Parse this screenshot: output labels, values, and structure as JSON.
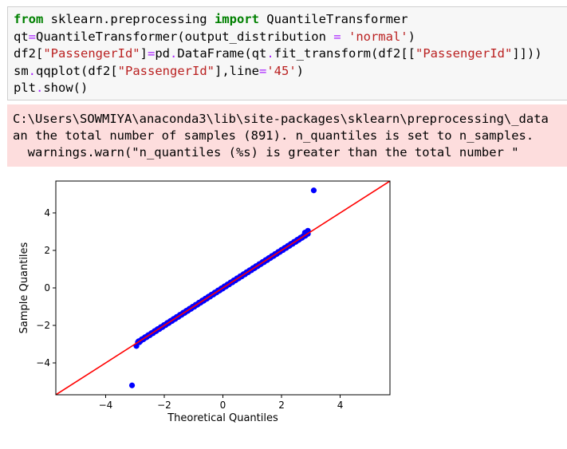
{
  "code_cell": {
    "lines": [
      {
        "segments": [
          {
            "t": "from",
            "c": "kw"
          },
          {
            "t": " sklearn.preprocessing ",
            "c": ""
          },
          {
            "t": "import",
            "c": "kw"
          },
          {
            "t": " QuantileTransformer",
            "c": ""
          }
        ]
      },
      {
        "segments": [
          {
            "t": "qt",
            "c": ""
          },
          {
            "t": "=",
            "c": "op"
          },
          {
            "t": "QuantileTransformer(output_distribution ",
            "c": ""
          },
          {
            "t": "=",
            "c": "op"
          },
          {
            "t": " ",
            "c": ""
          },
          {
            "t": "'normal'",
            "c": "str"
          },
          {
            "t": ")",
            "c": ""
          }
        ]
      },
      {
        "segments": [
          {
            "t": "df2[",
            "c": ""
          },
          {
            "t": "\"PassengerId\"",
            "c": "str"
          },
          {
            "t": "]",
            "c": ""
          },
          {
            "t": "=",
            "c": "op"
          },
          {
            "t": "pd",
            "c": ""
          },
          {
            "t": ".",
            "c": "op"
          },
          {
            "t": "DataFrame(qt",
            "c": ""
          },
          {
            "t": ".",
            "c": "op"
          },
          {
            "t": "fit_transform(df2[[",
            "c": ""
          },
          {
            "t": "\"PassengerId\"",
            "c": "str"
          },
          {
            "t": "]]))",
            "c": ""
          }
        ]
      },
      {
        "segments": [
          {
            "t": "sm",
            "c": ""
          },
          {
            "t": ".",
            "c": "op"
          },
          {
            "t": "qqplot(df2[",
            "c": ""
          },
          {
            "t": "\"PassengerId\"",
            "c": "str"
          },
          {
            "t": "],line",
            "c": ""
          },
          {
            "t": "=",
            "c": "op"
          },
          {
            "t": "'45'",
            "c": "str"
          },
          {
            "t": ")",
            "c": ""
          }
        ]
      },
      {
        "segments": [
          {
            "t": "plt",
            "c": ""
          },
          {
            "t": ".",
            "c": "op"
          },
          {
            "t": "show()",
            "c": ""
          }
        ]
      }
    ]
  },
  "stderr": {
    "lines": [
      "C:\\Users\\SOWMIYA\\anaconda3\\lib\\site-packages\\sklearn\\preprocessing\\_data",
      "an the total number of samples (891). n_quantiles is set to n_samples.",
      "  warnings.warn(\"n_quantiles (%s) is greater than the total number \""
    ]
  },
  "colors": {
    "code_bg": "#f7f7f7",
    "stderr_bg": "#fddddd",
    "keyword": "#008000",
    "operator": "#aa22ff",
    "string": "#ba2121",
    "points": "#0000ff",
    "reference_line": "#ff0000"
  },
  "chart_data": {
    "type": "scatter",
    "title": "",
    "xlabel": "Theoretical Quantiles",
    "ylabel": "Sample Quantiles",
    "xlim": [
      -5.7,
      5.7
    ],
    "ylim": [
      -5.7,
      5.7
    ],
    "xticks": [
      -4,
      -2,
      0,
      2,
      4
    ],
    "yticks": [
      -4,
      -2,
      0,
      2,
      4
    ],
    "xtick_labels": [
      "−4",
      "−2",
      "0",
      "2",
      "4"
    ],
    "ytick_labels": [
      "−4",
      "−2",
      "0",
      "2",
      "4"
    ],
    "grid": false,
    "reference_line": "45",
    "series": [
      {
        "description": "bulk",
        "x_range": [
          -2.9,
          2.9
        ],
        "slope": 1.0
      }
    ],
    "points": [
      {
        "x": -3.1,
        "y": -5.2
      },
      {
        "x": -2.95,
        "y": -3.1
      },
      {
        "x": -2.85,
        "y": -2.9
      },
      {
        "x": 2.8,
        "y": 2.95
      },
      {
        "x": 2.9,
        "y": 3.05
      },
      {
        "x": 3.1,
        "y": 5.2
      }
    ]
  }
}
